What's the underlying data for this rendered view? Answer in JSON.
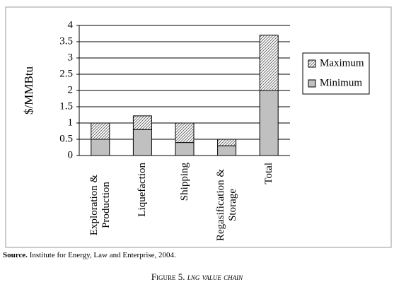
{
  "chart_data": {
    "type": "stacked_bar",
    "y_label": "$/MMBtu",
    "categories": [
      "Exploration & Production",
      "Liquefaction",
      "Shipping",
      "Regasification & Storage",
      "Total"
    ],
    "series": [
      {
        "name": "Minimum",
        "color": "#c0c0c0",
        "values": [
          0.5,
          0.8,
          0.4,
          0.3,
          2.0
        ]
      },
      {
        "name": "Maximum",
        "color": "hatch",
        "values": [
          0.5,
          0.42,
          0.6,
          0.2,
          1.7
        ]
      }
    ],
    "ylim": [
      0,
      4
    ],
    "yticks": [
      0,
      0.5,
      1,
      1.5,
      2,
      2.5,
      3,
      3.5,
      4
    ],
    "grid": true,
    "legend": "right"
  },
  "source_label": "Source.",
  "source_text": "Institute for Energy, Law and Enterprise, 2004.",
  "caption_label": "Figure 5.",
  "caption_text": "lng value chain"
}
